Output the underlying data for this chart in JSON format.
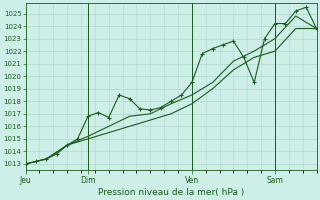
{
  "xlabel": "Pression niveau de la mer( hPa )",
  "bg_color": "#ceeee8",
  "grid_color": "#b0d8d0",
  "line_color": "#1a5c1a",
  "ylim": [
    1012.5,
    1025.8
  ],
  "yticks": [
    1013,
    1014,
    1015,
    1016,
    1017,
    1018,
    1019,
    1020,
    1021,
    1022,
    1023,
    1024,
    1025
  ],
  "day_labels": [
    "Jeu",
    "Dim",
    "Ven",
    "Sam"
  ],
  "day_positions": [
    0,
    36,
    96,
    144
  ],
  "total_points": 168,
  "series1_x": [
    0,
    6,
    12,
    18,
    24,
    30,
    36,
    42,
    48,
    54,
    60,
    66,
    72,
    78,
    84,
    90,
    96,
    102,
    108,
    114,
    120,
    126,
    132,
    138,
    144,
    150,
    156,
    162,
    168
  ],
  "series1_y": [
    1013.0,
    1013.2,
    1013.4,
    1013.8,
    1014.5,
    1015.0,
    1016.8,
    1017.1,
    1016.7,
    1018.5,
    1018.2,
    1017.4,
    1017.3,
    1017.5,
    1018.0,
    1018.5,
    1019.5,
    1021.8,
    1022.2,
    1022.5,
    1022.8,
    1021.5,
    1019.5,
    1023.0,
    1024.2,
    1024.2,
    1025.2,
    1025.5,
    1023.8
  ],
  "series2_x": [
    0,
    12,
    24,
    36,
    48,
    60,
    72,
    84,
    96,
    108,
    120,
    132,
    144,
    156,
    168
  ],
  "series2_y": [
    1013.0,
    1013.4,
    1014.5,
    1015.0,
    1015.5,
    1016.0,
    1016.5,
    1017.0,
    1017.8,
    1019.0,
    1020.5,
    1021.5,
    1022.0,
    1023.8,
    1023.8
  ],
  "series3_x": [
    0,
    12,
    24,
    36,
    48,
    60,
    72,
    84,
    96,
    108,
    120,
    132,
    144,
    156,
    168
  ],
  "series3_y": [
    1013.0,
    1013.4,
    1014.5,
    1015.2,
    1016.0,
    1016.8,
    1017.0,
    1017.8,
    1018.5,
    1019.5,
    1021.2,
    1022.0,
    1023.0,
    1024.8,
    1023.8
  ],
  "vline_positions": [
    36,
    96,
    144
  ]
}
